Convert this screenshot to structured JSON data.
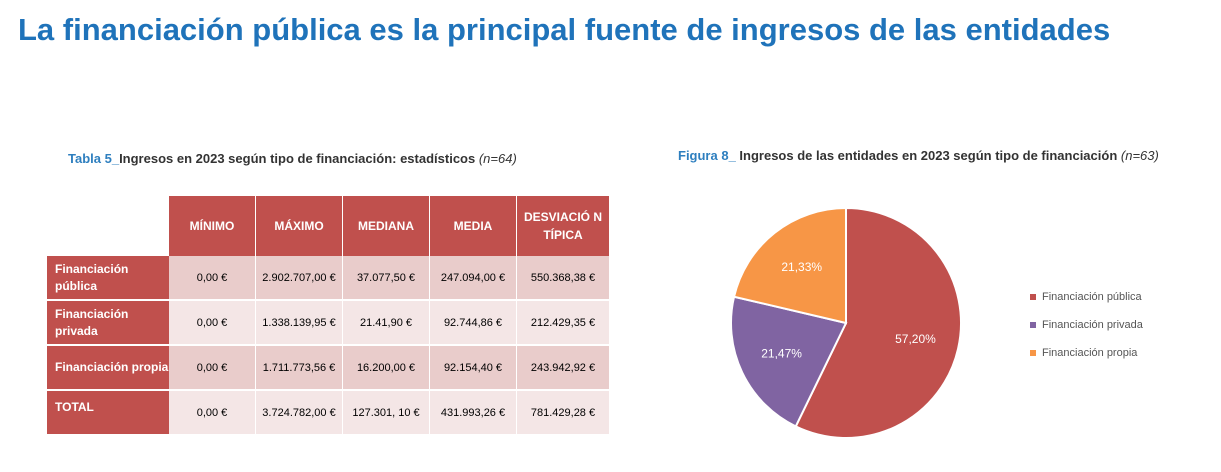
{
  "title": "La financiación pública es la principal fuente de ingresos de las entidades",
  "table": {
    "caption_label": "Tabla 5_",
    "caption_text": "Ingresos en 2023 según tipo de financiación: estadísticos",
    "caption_n": "(n=64)",
    "columns": [
      "MÍNIMO",
      "MÁXIMO",
      "MEDIANA",
      "MEDIA",
      "DESVIACIÓ N TÍPICA"
    ],
    "rows": [
      {
        "label": "Financiación pública",
        "values": [
          "0,00 €",
          "2.902.707,00 €",
          "37.077,50 €",
          "247.094,00 €",
          "550.368,38 €"
        ]
      },
      {
        "label": "Financiación privada",
        "values": [
          "0,00 €",
          "1.338.139,95 €",
          "21.41,90 €",
          "92.744,86 €",
          "212.429,35 €"
        ]
      },
      {
        "label": "Financiación propia",
        "values": [
          "0,00 €",
          "1.711.773,56 €",
          "16.200,00 €",
          "92.154,40 €",
          "243.942,92 €"
        ]
      },
      {
        "label": "TOTAL",
        "values": [
          "0,00 €",
          "3.724.782,00 €",
          "127.301, 10 €",
          "431.993,26 €",
          "781.429,28 €"
        ]
      }
    ]
  },
  "figure": {
    "caption_label": "Figura 8_",
    "caption_text": "Ingresos de las entidades en 2023 según tipo de financiación",
    "caption_n": "(n=63)"
  },
  "chart_data": {
    "type": "pie",
    "slices": [
      {
        "name": "Financiación pública",
        "value": 57.2,
        "label": "57,20%",
        "color": "#C0504D"
      },
      {
        "name": "Financiación privada",
        "value": 21.47,
        "label": "21,47%",
        "color": "#8064A2"
      },
      {
        "name": "Financiación propia",
        "value": 21.33,
        "label": "21,33%",
        "color": "#F79646"
      }
    ],
    "legend_position": "right"
  }
}
